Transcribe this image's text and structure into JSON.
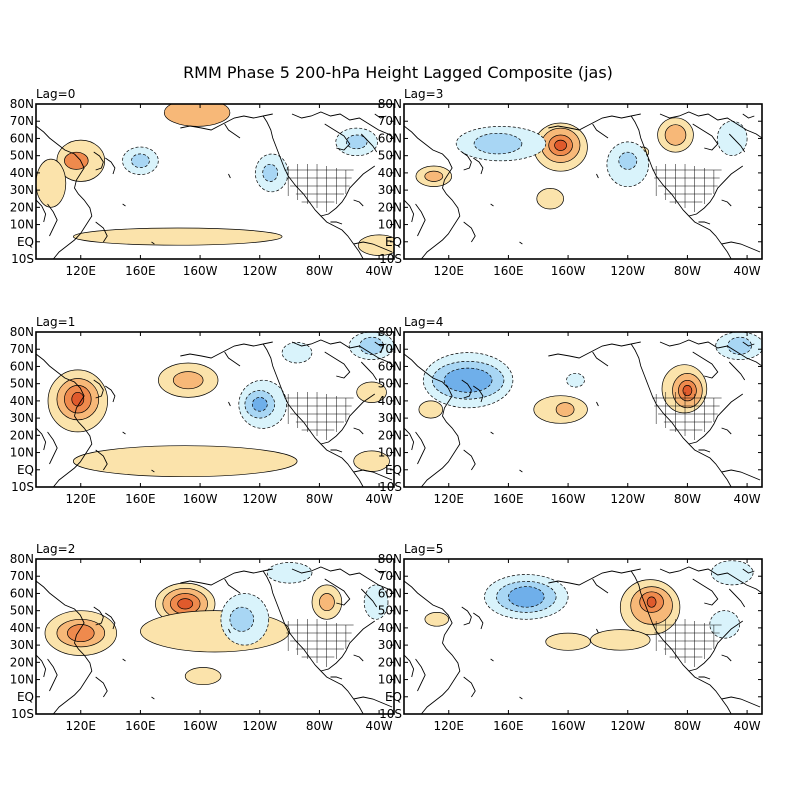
{
  "title": "RMM Phase 5 200-hPa Height Lagged Composite (jas)",
  "axes": {
    "lat_ticks": [
      "80N",
      "70N",
      "60N",
      "50N",
      "40N",
      "30N",
      "20N",
      "10N",
      "EQ",
      "10S"
    ],
    "lon_ticks": [
      "120E",
      "160E",
      "160W",
      "120W",
      "80W",
      "40W"
    ]
  },
  "colors": {
    "pos1": "#fbe3ab",
    "pos2": "#f7b878",
    "pos3": "#ef8a4d",
    "pos4": "#e05a2c",
    "pos5": "#c83214",
    "neg1": "#d9f3fb",
    "neg2": "#a8d6f4",
    "neg3": "#6fafea",
    "neg4": "#4a8ee0"
  },
  "panels": [
    {
      "id": "lag0",
      "label": "Lag=0",
      "anomalies": [
        {
          "sign": "pos",
          "level": 1,
          "lon": 120,
          "lat": 47,
          "rx": 16,
          "ry": 12
        },
        {
          "sign": "pos",
          "level": 3,
          "lon": 117,
          "lat": 47,
          "rx": 8,
          "ry": 5
        },
        {
          "sign": "pos",
          "level": 2,
          "lon": -162,
          "lat": 75,
          "rx": 22,
          "ry": 8
        },
        {
          "sign": "pos",
          "level": 1,
          "lon": 100,
          "lat": 34,
          "rx": 10,
          "ry": 14
        },
        {
          "sign": "pos",
          "level": 1,
          "lon": -175,
          "lat": 3,
          "rx": 70,
          "ry": 5
        },
        {
          "sign": "pos",
          "level": 1,
          "lon": -40,
          "lat": -2,
          "rx": 14,
          "ry": 6
        },
        {
          "sign": "neg",
          "level": 1,
          "lon": 160,
          "lat": 47,
          "rx": 12,
          "ry": 8
        },
        {
          "sign": "neg",
          "level": 2,
          "lon": 160,
          "lat": 47,
          "rx": 6,
          "ry": 4
        },
        {
          "sign": "neg",
          "level": 1,
          "lon": -112,
          "lat": 40,
          "rx": 11,
          "ry": 11
        },
        {
          "sign": "neg",
          "level": 2,
          "lon": -113,
          "lat": 40,
          "rx": 5,
          "ry": 5
        },
        {
          "sign": "neg",
          "level": 1,
          "lon": -55,
          "lat": 58,
          "rx": 14,
          "ry": 8
        },
        {
          "sign": "neg",
          "level": 2,
          "lon": -55,
          "lat": 58,
          "rx": 7,
          "ry": 4
        }
      ]
    },
    {
      "id": "lag3",
      "label": "Lag=3",
      "anomalies": [
        {
          "sign": "pos",
          "level": 1,
          "lon": -165,
          "lat": 55,
          "rx": 18,
          "ry": 14
        },
        {
          "sign": "pos",
          "level": 2,
          "lon": -165,
          "lat": 56,
          "rx": 13,
          "ry": 10
        },
        {
          "sign": "pos",
          "level": 3,
          "lon": -165,
          "lat": 56,
          "rx": 8,
          "ry": 6
        },
        {
          "sign": "pos",
          "level": 4,
          "lon": -165,
          "lat": 56,
          "rx": 4,
          "ry": 3
        },
        {
          "sign": "pos",
          "level": 1,
          "lon": -172,
          "lat": 25,
          "rx": 9,
          "ry": 6
        },
        {
          "sign": "pos",
          "level": 1,
          "lon": 110,
          "lat": 38,
          "rx": 12,
          "ry": 6
        },
        {
          "sign": "pos",
          "level": 2,
          "lon": 110,
          "lat": 38,
          "rx": 6,
          "ry": 3
        },
        {
          "sign": "pos",
          "level": 1,
          "lon": -88,
          "lat": 62,
          "rx": 12,
          "ry": 10
        },
        {
          "sign": "pos",
          "level": 2,
          "lon": -88,
          "lat": 62,
          "rx": 7,
          "ry": 6
        },
        {
          "sign": "pos",
          "level": 1,
          "lon": -110,
          "lat": 52,
          "rx": 4,
          "ry": 3
        },
        {
          "sign": "neg",
          "level": 1,
          "lon": 155,
          "lat": 57,
          "rx": 30,
          "ry": 10
        },
        {
          "sign": "neg",
          "level": 2,
          "lon": 153,
          "lat": 57,
          "rx": 16,
          "ry": 6
        },
        {
          "sign": "neg",
          "level": 1,
          "lon": -120,
          "lat": 45,
          "rx": 14,
          "ry": 13
        },
        {
          "sign": "neg",
          "level": 2,
          "lon": -120,
          "lat": 47,
          "rx": 6,
          "ry": 5
        },
        {
          "sign": "neg",
          "level": 1,
          "lon": -50,
          "lat": 60,
          "rx": 10,
          "ry": 10
        }
      ]
    },
    {
      "id": "lag1",
      "label": "Lag=1",
      "anomalies": [
        {
          "sign": "pos",
          "level": 1,
          "lon": 118,
          "lat": 40,
          "rx": 20,
          "ry": 18
        },
        {
          "sign": "pos",
          "level": 2,
          "lon": 118,
          "lat": 41,
          "rx": 14,
          "ry": 12
        },
        {
          "sign": "pos",
          "level": 3,
          "lon": 118,
          "lat": 41,
          "rx": 9,
          "ry": 8
        },
        {
          "sign": "pos",
          "level": 4,
          "lon": 118,
          "lat": 41,
          "rx": 4,
          "ry": 4
        },
        {
          "sign": "pos",
          "level": 1,
          "lon": -168,
          "lat": 52,
          "rx": 20,
          "ry": 10
        },
        {
          "sign": "pos",
          "level": 2,
          "lon": -168,
          "lat": 52,
          "rx": 10,
          "ry": 5
        },
        {
          "sign": "pos",
          "level": 1,
          "lon": -170,
          "lat": 5,
          "rx": 75,
          "ry": 9
        },
        {
          "sign": "pos",
          "level": 1,
          "lon": -45,
          "lat": 45,
          "rx": 10,
          "ry": 6
        },
        {
          "sign": "pos",
          "level": 1,
          "lon": -45,
          "lat": 5,
          "rx": 12,
          "ry": 6
        },
        {
          "sign": "neg",
          "level": 1,
          "lon": -118,
          "lat": 38,
          "rx": 16,
          "ry": 14
        },
        {
          "sign": "neg",
          "level": 2,
          "lon": -120,
          "lat": 38,
          "rx": 10,
          "ry": 8
        },
        {
          "sign": "neg",
          "level": 3,
          "lon": -120,
          "lat": 38,
          "rx": 5,
          "ry": 4
        },
        {
          "sign": "neg",
          "level": 1,
          "lon": -45,
          "lat": 72,
          "rx": 15,
          "ry": 8
        },
        {
          "sign": "neg",
          "level": 2,
          "lon": -45,
          "lat": 72,
          "rx": 8,
          "ry": 5
        },
        {
          "sign": "neg",
          "level": 1,
          "lon": -95,
          "lat": 68,
          "rx": 10,
          "ry": 6
        }
      ]
    },
    {
      "id": "lag4",
      "label": "Lag=4",
      "anomalies": [
        {
          "sign": "neg",
          "level": 1,
          "lon": 133,
          "lat": 52,
          "rx": 30,
          "ry": 16
        },
        {
          "sign": "neg",
          "level": 2,
          "lon": 133,
          "lat": 52,
          "rx": 24,
          "ry": 11
        },
        {
          "sign": "neg",
          "level": 3,
          "lon": 133,
          "lat": 52,
          "rx": 16,
          "ry": 7
        },
        {
          "sign": "neg",
          "level": 1,
          "lon": -45,
          "lat": 72,
          "rx": 16,
          "ry": 8
        },
        {
          "sign": "neg",
          "level": 2,
          "lon": -45,
          "lat": 72,
          "rx": 8,
          "ry": 5
        },
        {
          "sign": "neg",
          "level": 1,
          "lon": -155,
          "lat": 52,
          "rx": 6,
          "ry": 4
        },
        {
          "sign": "pos",
          "level": 1,
          "lon": -165,
          "lat": 35,
          "rx": 18,
          "ry": 8
        },
        {
          "sign": "pos",
          "level": 2,
          "lon": -162,
          "lat": 35,
          "rx": 6,
          "ry": 4
        },
        {
          "sign": "pos",
          "level": 1,
          "lon": -82,
          "lat": 47,
          "rx": 15,
          "ry": 14
        },
        {
          "sign": "pos",
          "level": 2,
          "lon": -80,
          "lat": 46,
          "rx": 10,
          "ry": 10
        },
        {
          "sign": "pos",
          "level": 3,
          "lon": -80,
          "lat": 46,
          "rx": 6,
          "ry": 6
        },
        {
          "sign": "pos",
          "level": 4,
          "lon": -80,
          "lat": 46,
          "rx": 3,
          "ry": 3
        },
        {
          "sign": "pos",
          "level": 1,
          "lon": 108,
          "lat": 35,
          "rx": 8,
          "ry": 5
        }
      ]
    },
    {
      "id": "lag2",
      "label": "Lag=2",
      "anomalies": [
        {
          "sign": "pos",
          "level": 1,
          "lon": 120,
          "lat": 37,
          "rx": 24,
          "ry": 13
        },
        {
          "sign": "pos",
          "level": 2,
          "lon": 120,
          "lat": 37,
          "rx": 16,
          "ry": 8
        },
        {
          "sign": "pos",
          "level": 3,
          "lon": 120,
          "lat": 37,
          "rx": 9,
          "ry": 5
        },
        {
          "sign": "pos",
          "level": 1,
          "lon": -170,
          "lat": 54,
          "rx": 20,
          "ry": 12
        },
        {
          "sign": "pos",
          "level": 2,
          "lon": -170,
          "lat": 54,
          "rx": 15,
          "ry": 9
        },
        {
          "sign": "pos",
          "level": 3,
          "lon": -170,
          "lat": 54,
          "rx": 10,
          "ry": 6
        },
        {
          "sign": "pos",
          "level": 4,
          "lon": -170,
          "lat": 54,
          "rx": 5,
          "ry": 3
        },
        {
          "sign": "pos",
          "level": 1,
          "lon": -75,
          "lat": 55,
          "rx": 10,
          "ry": 10
        },
        {
          "sign": "pos",
          "level": 2,
          "lon": -75,
          "lat": 55,
          "rx": 5,
          "ry": 5
        },
        {
          "sign": "pos",
          "level": 1,
          "lon": -158,
          "lat": 12,
          "rx": 12,
          "ry": 5
        },
        {
          "sign": "pos",
          "level": 1,
          "lon": -150,
          "lat": 38,
          "rx": 50,
          "ry": 12
        },
        {
          "sign": "neg",
          "level": 1,
          "lon": -130,
          "lat": 45,
          "rx": 16,
          "ry": 15
        },
        {
          "sign": "neg",
          "level": 2,
          "lon": -132,
          "lat": 45,
          "rx": 8,
          "ry": 7
        },
        {
          "sign": "neg",
          "level": 1,
          "lon": -42,
          "lat": 55,
          "rx": 8,
          "ry": 10
        },
        {
          "sign": "neg",
          "level": 1,
          "lon": -100,
          "lat": 72,
          "rx": 15,
          "ry": 6
        }
      ]
    },
    {
      "id": "lag5",
      "label": "Lag=5",
      "anomalies": [
        {
          "sign": "neg",
          "level": 1,
          "lon": 172,
          "lat": 58,
          "rx": 28,
          "ry": 13
        },
        {
          "sign": "neg",
          "level": 2,
          "lon": 172,
          "lat": 58,
          "rx": 20,
          "ry": 9
        },
        {
          "sign": "neg",
          "level": 3,
          "lon": 172,
          "lat": 58,
          "rx": 12,
          "ry": 6
        },
        {
          "sign": "neg",
          "level": 1,
          "lon": -50,
          "lat": 72,
          "rx": 14,
          "ry": 7
        },
        {
          "sign": "neg",
          "level": 1,
          "lon": -55,
          "lat": 42,
          "rx": 10,
          "ry": 8
        },
        {
          "sign": "pos",
          "level": 1,
          "lon": -105,
          "lat": 52,
          "rx": 20,
          "ry": 16
        },
        {
          "sign": "pos",
          "level": 2,
          "lon": -104,
          "lat": 53,
          "rx": 14,
          "ry": 11
        },
        {
          "sign": "pos",
          "level": 3,
          "lon": -104,
          "lat": 55,
          "rx": 8,
          "ry": 6
        },
        {
          "sign": "pos",
          "level": 4,
          "lon": -104,
          "lat": 55,
          "rx": 3,
          "ry": 3
        },
        {
          "sign": "pos",
          "level": 1,
          "lon": -160,
          "lat": 32,
          "rx": 15,
          "ry": 5
        },
        {
          "sign": "pos",
          "level": 1,
          "lon": -125,
          "lat": 33,
          "rx": 20,
          "ry": 6
        },
        {
          "sign": "pos",
          "level": 1,
          "lon": 112,
          "lat": 45,
          "rx": 8,
          "ry": 4
        }
      ]
    }
  ]
}
